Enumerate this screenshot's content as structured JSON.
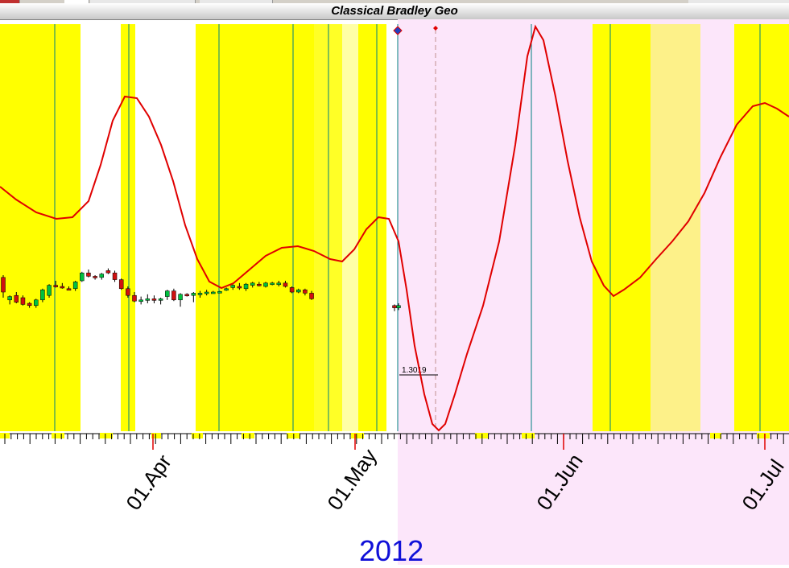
{
  "title": "Classical Bradley Geo",
  "year": "2012",
  "chart_data": {
    "type": "candlestick_with_line",
    "title": "Classical Bradley Geo",
    "year_label": "2012",
    "x_tick_labels": [
      "01.Apr",
      "01.May",
      "01.Jun",
      "01.Jul"
    ],
    "price_marker_label": "1.3019",
    "forecast_shading": "pink region after last candle",
    "colors": {
      "highlight": "#ffff00",
      "forecast_bg": "#fce6fa",
      "line": "#e00000",
      "up_candle": "#00c040",
      "down_candle": "#d01010",
      "vertical_lines": "#008080",
      "year_text": "#1010d8"
    },
    "candles": [
      [
        1.328,
        1.33,
        1.31,
        1.315
      ],
      [
        1.308,
        1.312,
        1.304,
        1.311
      ],
      [
        1.312,
        1.315,
        1.305,
        1.306
      ],
      [
        1.31,
        1.312,
        1.303,
        1.304
      ],
      [
        1.305,
        1.306,
        1.301,
        1.303
      ],
      [
        1.303,
        1.309,
        1.301,
        1.308
      ],
      [
        1.308,
        1.318,
        1.306,
        1.317
      ],
      [
        1.312,
        1.322,
        1.31,
        1.321
      ],
      [
        1.321,
        1.325,
        1.319,
        1.32
      ],
      [
        1.32,
        1.323,
        1.318,
        1.319
      ],
      [
        1.318,
        1.32,
        1.317,
        1.317
      ],
      [
        1.318,
        1.325,
        1.316,
        1.324
      ],
      [
        1.325,
        1.333,
        1.324,
        1.332
      ],
      [
        1.332,
        1.335,
        1.328,
        1.329
      ],
      [
        1.329,
        1.33,
        1.326,
        1.328
      ],
      [
        1.328,
        1.332,
        1.326,
        1.331
      ],
      [
        1.334,
        1.336,
        1.331,
        1.332
      ],
      [
        1.332,
        1.334,
        1.324,
        1.326
      ],
      [
        1.326,
        1.327,
        1.317,
        1.318
      ],
      [
        1.318,
        1.32,
        1.31,
        1.312
      ],
      [
        1.312,
        1.315,
        1.306,
        1.307
      ],
      [
        1.307,
        1.311,
        1.304,
        1.308
      ],
      [
        1.309,
        1.313,
        1.305,
        1.309
      ],
      [
        1.309,
        1.312,
        1.305,
        1.308
      ],
      [
        1.308,
        1.31,
        1.304,
        1.309
      ],
      [
        1.311,
        1.317,
        1.308,
        1.316
      ],
      [
        1.316,
        1.318,
        1.307,
        1.308
      ],
      [
        1.308,
        1.314,
        1.302,
        1.313
      ],
      [
        1.313,
        1.314,
        1.311,
        1.312
      ],
      [
        1.312,
        1.315,
        1.306,
        1.314
      ],
      [
        1.313,
        1.316,
        1.31,
        1.314
      ],
      [
        1.315,
        1.317,
        1.312,
        1.315
      ],
      [
        1.315,
        1.316,
        1.314,
        1.315
      ],
      [
        1.3155,
        1.316,
        1.315,
        1.3155
      ],
      [
        1.317,
        1.319,
        1.316,
        1.318
      ],
      [
        1.319,
        1.322,
        1.317,
        1.321
      ],
      [
        1.32,
        1.323,
        1.317,
        1.319
      ],
      [
        1.318,
        1.323,
        1.316,
        1.322
      ],
      [
        1.321,
        1.324,
        1.319,
        1.323
      ],
      [
        1.322,
        1.324,
        1.32,
        1.321
      ],
      [
        1.32,
        1.324,
        1.319,
        1.323
      ],
      [
        1.323,
        1.324,
        1.321,
        1.323
      ],
      [
        1.322,
        1.325,
        1.32,
        1.323
      ],
      [
        1.323,
        1.325,
        1.319,
        1.32
      ],
      [
        1.319,
        1.32,
        1.314,
        1.315
      ],
      [
        1.315,
        1.318,
        1.314,
        1.317
      ],
      [
        1.317,
        1.318,
        1.312,
        1.314
      ],
      [
        1.314,
        1.316,
        1.308,
        1.309
      ],
      [
        1.303,
        1.304,
        1.298,
        1.301
      ],
      [
        1.301,
        1.305,
        1.299,
        1.303
      ]
    ]
  }
}
